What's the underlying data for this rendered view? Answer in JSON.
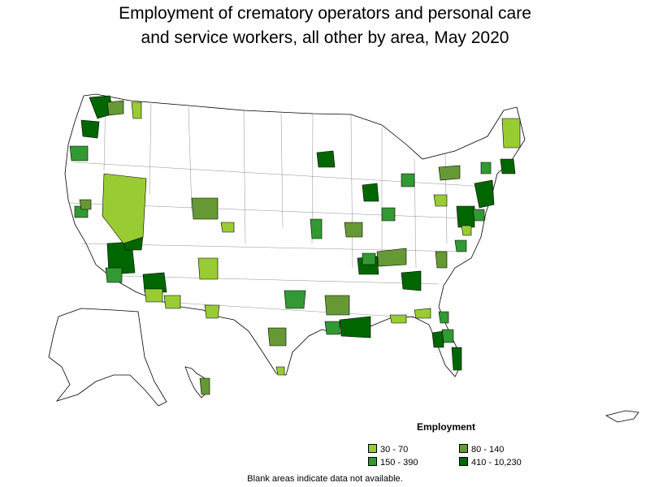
{
  "title": {
    "line1": "Employment of crematory operators and personal care",
    "line2": "and service workers, all other by area, May 2020"
  },
  "legend": {
    "title": "Employment",
    "items": [
      {
        "label": "30 - 70",
        "color": "#99cc33"
      },
      {
        "label": "80 - 140",
        "color": "#669933"
      },
      {
        "label": "150 - 390",
        "color": "#339933"
      },
      {
        "label": "410 - 10,230",
        "color": "#006600"
      }
    ]
  },
  "footnote": "Blank areas indicate data not available.",
  "map_data": {
    "type": "choropleth",
    "region": "United States metropolitan and nonmetropolitan areas",
    "outline_color": "#000000",
    "no_data_color": "#ffffff",
    "icons": [
      "us-states-outline",
      "alaska-outline",
      "hawaii-outline",
      "puerto-rico-outline"
    ]
  }
}
